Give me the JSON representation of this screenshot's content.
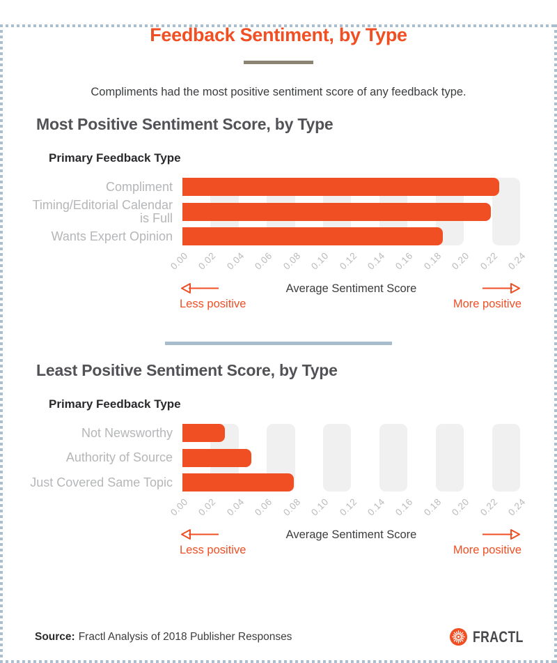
{
  "page": {
    "title": "Feedback Sentiment, by Type",
    "subtitle": "Compliments had the most positive sentiment score of any feedback type.",
    "source_label": "Source:",
    "source_text": "Fractl Analysis of 2018 Publisher Responses",
    "brand_name": "FRACTL"
  },
  "colors": {
    "accent_orange": "#f04e23",
    "band_gray": "#f0f0f1",
    "category_label_gray": "#b5b6b8",
    "tick_gray": "#b9babc",
    "section_heading_gray": "#515156",
    "text_dark": "#3b3c3e",
    "title_divider_taupe": "#8c8372",
    "section_divider_blue": "#a7bccd",
    "page_border_blue": "#a9becf"
  },
  "axis_annotations": {
    "less_label": "Less positive",
    "more_label": "More positive",
    "axis_label": "Average Sentiment Score"
  },
  "chart_data": [
    {
      "type": "bar",
      "orientation": "horizontal",
      "section_title": "Most Positive Sentiment Score, by Type",
      "axis_title": "Primary Feedback Type",
      "categories": [
        "Compliment",
        "Timing/Editorial Calendar\nis Full",
        "Wants Expert Opinion"
      ],
      "values": [
        0.225,
        0.219,
        0.185
      ],
      "xlabel": "Average Sentiment Score",
      "xlim": [
        0,
        0.24
      ],
      "tick_step": 0.02,
      "tick_labels": [
        "0.00",
        "0.02",
        "0.04",
        "0.06",
        "0.08",
        "0.10",
        "0.12",
        "0.14",
        "0.16",
        "0.18",
        "0.20",
        "0.22",
        "0.24"
      ],
      "grid": "alternating shaded bands on even intervals",
      "bar_color": "#f04e23"
    },
    {
      "type": "bar",
      "orientation": "horizontal",
      "section_title": "Least Positive Sentiment Score, by Type",
      "axis_title": "Primary Feedback Type",
      "categories": [
        "Not Newsworthy",
        "Authority of Source",
        "Just Covered Same Topic"
      ],
      "values": [
        0.03,
        0.049,
        0.079
      ],
      "xlabel": "Average Sentiment Score",
      "xlim": [
        0,
        0.24
      ],
      "tick_step": 0.02,
      "tick_labels": [
        "0.00",
        "0.02",
        "0.04",
        "0.06",
        "0.08",
        "0.10",
        "0.12",
        "0.14",
        "0.16",
        "0.18",
        "0.20",
        "0.22",
        "0.24"
      ],
      "grid": "alternating shaded bands on even intervals",
      "bar_color": "#f04e23"
    }
  ]
}
